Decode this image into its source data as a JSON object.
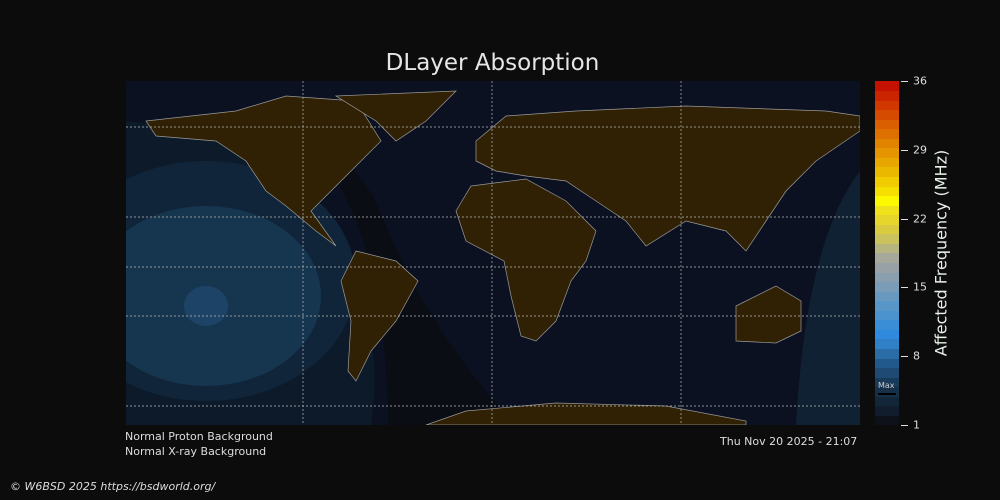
{
  "title": "DLayer Absorption",
  "colorbar": {
    "label": "Affected Frequency (MHz)",
    "min": 1,
    "max": 36,
    "ticks": [
      "36",
      "29",
      "22",
      "15",
      "8",
      "1"
    ],
    "max_marker": "Max",
    "colors": [
      "#0e111a",
      "#111d2c",
      "#14263a",
      "#173049",
      "#1a3a5a",
      "#1e4a73",
      "#22598c",
      "#2a6ca6",
      "#2f80c7",
      "#2f8ade",
      "#3a8ed6",
      "#4a93cf",
      "#5896c8",
      "#6999bf",
      "#7a9cb6",
      "#899fae",
      "#98a2a6",
      "#a5a89b",
      "#b6b57f",
      "#c9c25d",
      "#d8cb40",
      "#e6d52a",
      "#efe11a",
      "#fbf800",
      "#f5df00",
      "#f0cc00",
      "#ebb800",
      "#e8a600",
      "#e59500",
      "#e28300",
      "#de7000",
      "#d95f00",
      "#d54b00",
      "#d03800",
      "#cb2400",
      "#c51200"
    ]
  },
  "status": {
    "proton": "Normal Proton Background",
    "xray": "Normal X-ray Background",
    "timestamp": "Thu Nov 20 2025 - 21:07"
  },
  "copyright": "© W6BSD 2025 https://bsdworld.org/",
  "colors": {
    "land": "#302104",
    "night": "#0b0e16",
    "day": "#0c1422",
    "coast": "#9a9a9a"
  }
}
